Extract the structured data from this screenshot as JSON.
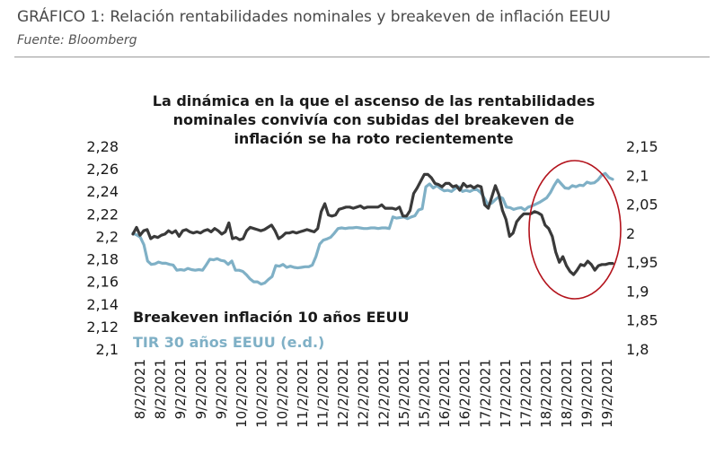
{
  "header": {
    "title": "GRÁFICO 1: Relación rentabilidades nominales y breakeven de inflación EEUU",
    "source": "Fuente: Bloomberg"
  },
  "chart_data": {
    "type": "line",
    "title_lines": [
      "La dinámica en la que el ascenso de las rentabilidades",
      "nominales convivía con subidas del breakeven de",
      "inflación se ha roto recientemente"
    ],
    "y_left": {
      "ticks": [
        "2,28",
        "2,26",
        "2,24",
        "2,22",
        "2,2",
        "2,18",
        "2,16",
        "2,14",
        "2,12",
        "2,1"
      ],
      "range": [
        2.1,
        2.28
      ]
    },
    "y_right": {
      "ticks": [
        "2,15",
        "2,1",
        "2,05",
        "2",
        "1,95",
        "1,9",
        "1,85",
        "1,8"
      ],
      "range": [
        1.8,
        2.15
      ]
    },
    "x_labels": [
      "8/2/2021",
      "8/2/2021",
      "9/2/2021",
      "9/2/2021",
      "9/2/2021",
      "10/2/2021",
      "10/2/2021",
      "10/2/2021",
      "11/2/2021",
      "11/2/2021",
      "12/2/2021",
      "12/2/2021",
      "12/2/2021",
      "15/2/2021",
      "15/2/2021",
      "16/2/2021",
      "16/2/2021",
      "17/2/2021",
      "17/2/2021",
      "17/2/2021",
      "18/2/2021",
      "18/2/2021",
      "19/2/2021",
      "19/2/2021"
    ],
    "series": [
      {
        "name": "Breakeven inflación 10 años EEUU",
        "axis": "left",
        "color": "#3a3a3a",
        "values": [
          2.202,
          2.208,
          2.201,
          2.205,
          2.206,
          2.198,
          2.2,
          2.199,
          2.201,
          2.202,
          2.205,
          2.203,
          2.205,
          2.2,
          2.205,
          2.206,
          2.204,
          2.203,
          2.204,
          2.203,
          2.205,
          2.206,
          2.204,
          2.207,
          2.205,
          2.202,
          2.204,
          2.212,
          2.198,
          2.199,
          2.197,
          2.198,
          2.205,
          2.208,
          2.207,
          2.206,
          2.205,
          2.206,
          2.208,
          2.21,
          2.205,
          2.198,
          2.2,
          2.203,
          2.203,
          2.204,
          2.203,
          2.204,
          2.205,
          2.206,
          2.205,
          2.204,
          2.207,
          2.222,
          2.229,
          2.219,
          2.218,
          2.219,
          2.224,
          2.225,
          2.226,
          2.226,
          2.225,
          2.226,
          2.227,
          2.225,
          2.226,
          2.226,
          2.226,
          2.226,
          2.228,
          2.225,
          2.225,
          2.225,
          2.224,
          2.226,
          2.218,
          2.218,
          2.223,
          2.238,
          2.243,
          2.249,
          2.255,
          2.255,
          2.252,
          2.247,
          2.246,
          2.244,
          2.247,
          2.247,
          2.244,
          2.245,
          2.241,
          2.247,
          2.244,
          2.245,
          2.243,
          2.245,
          2.244,
          2.228,
          2.225,
          2.235,
          2.245,
          2.237,
          2.223,
          2.215,
          2.2,
          2.203,
          2.213,
          2.217,
          2.22,
          2.22,
          2.22,
          2.222,
          2.221,
          2.219,
          2.21,
          2.207,
          2.2,
          2.186,
          2.177,
          2.182,
          2.174,
          2.169,
          2.166,
          2.17,
          2.175,
          2.174,
          2.178,
          2.175,
          2.17,
          2.174,
          2.175,
          2.175,
          2.176,
          2.176
        ]
      },
      {
        "name": "TIR 30 años EEUU (e.d.)",
        "axis": "right",
        "color": "#7fb0c6",
        "values": [
          2.0,
          1.997,
          1.993,
          1.98,
          1.952,
          1.946,
          1.947,
          1.95,
          1.948,
          1.948,
          1.946,
          1.945,
          1.936,
          1.937,
          1.936,
          1.939,
          1.937,
          1.936,
          1.937,
          1.936,
          1.945,
          1.955,
          1.954,
          1.956,
          1.953,
          1.952,
          1.946,
          1.952,
          1.936,
          1.936,
          1.934,
          1.928,
          1.921,
          1.916,
          1.916,
          1.912,
          1.914,
          1.92,
          1.925,
          1.944,
          1.943,
          1.946,
          1.941,
          1.943,
          1.941,
          1.94,
          1.941,
          1.942,
          1.942,
          1.945,
          1.96,
          1.981,
          1.988,
          1.99,
          1.993,
          2.0,
          2.008,
          2.009,
          2.008,
          2.009,
          2.009,
          2.01,
          2.009,
          2.008,
          2.008,
          2.009,
          2.009,
          2.008,
          2.009,
          2.009,
          2.008,
          2.028,
          2.026,
          2.027,
          2.028,
          2.025,
          2.028,
          2.03,
          2.04,
          2.042,
          2.08,
          2.085,
          2.078,
          2.082,
          2.077,
          2.073,
          2.074,
          2.072,
          2.077,
          2.08,
          2.072,
          2.074,
          2.072,
          2.075,
          2.075,
          2.07,
          2.06,
          2.049,
          2.052,
          2.058,
          2.063,
          2.06,
          2.045,
          2.044,
          2.041,
          2.043,
          2.044,
          2.04,
          2.045,
          2.047,
          2.05,
          2.053,
          2.057,
          2.061,
          2.07,
          2.082,
          2.092,
          2.085,
          2.078,
          2.077,
          2.082,
          2.08,
          2.083,
          2.082,
          2.088,
          2.086,
          2.087,
          2.092,
          2.1,
          2.103,
          2.096,
          2.093
        ]
      }
    ],
    "annotations": [
      {
        "type": "ellipse",
        "color": "#b3121b",
        "label": ""
      }
    ]
  }
}
